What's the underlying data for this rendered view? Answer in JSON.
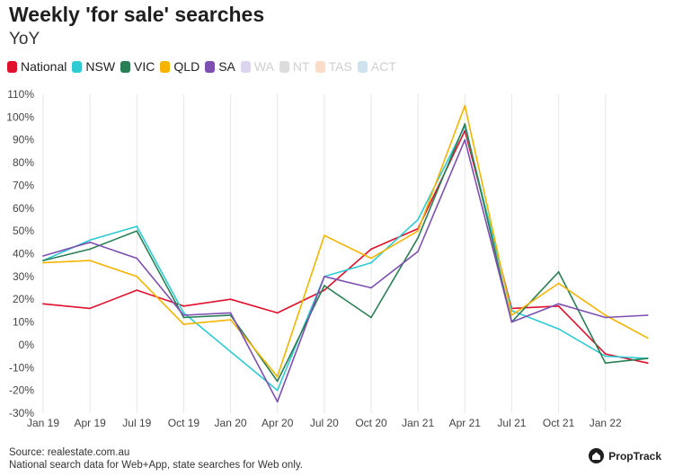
{
  "header": {
    "title": "Weekly 'for sale' searches",
    "subtitle": "YoY"
  },
  "legend": [
    {
      "name": "National",
      "color": "#e0102c",
      "visible": true
    },
    {
      "name": "NSW",
      "color": "#2ecbd3",
      "visible": true
    },
    {
      "name": "VIC",
      "color": "#2a7f54",
      "visible": true
    },
    {
      "name": "QLD",
      "color": "#f4b400",
      "visible": true
    },
    {
      "name": "SA",
      "color": "#7d4fb0",
      "visible": true
    },
    {
      "name": "WA",
      "color": "#dcd3ee",
      "visible": false
    },
    {
      "name": "NT",
      "color": "#dcdcdc",
      "visible": false
    },
    {
      "name": "TAS",
      "color": "#fbdcc8",
      "visible": false
    },
    {
      "name": "ACT",
      "color": "#cfe3ee",
      "visible": false
    }
  ],
  "footer": {
    "source": "Source: realestate.com.au",
    "note": "National search data for Web+App, state searches for Web only."
  },
  "brand": {
    "name": "PropTrack"
  },
  "chart_data": {
    "type": "line",
    "title": "Weekly 'for sale' searches",
    "subtitle": "YoY",
    "x_ticks": [
      "Jan 19",
      "Apr 19",
      "Jul 19",
      "Oct 19",
      "Jan 20",
      "Apr 20",
      "Jul 20",
      "Oct 20",
      "Jan 21",
      "Apr 21",
      "Jul 21",
      "Oct 21",
      "Jan 22"
    ],
    "y_ticks": [
      110,
      100,
      90,
      80,
      70,
      60,
      50,
      40,
      30,
      20,
      10,
      0,
      -10,
      -20,
      -30
    ],
    "y_unit": "%",
    "ylim": [
      -30,
      110
    ],
    "grid": "vertical",
    "legend_position": "top-left",
    "series": [
      {
        "name": "National",
        "color": "#e0102c",
        "x": [
          0,
          1,
          2,
          3,
          4,
          5,
          6,
          7,
          8,
          9,
          10,
          11,
          12,
          12.9
        ],
        "values": [
          18,
          16,
          24,
          17,
          20,
          14,
          24,
          42,
          51,
          94,
          16,
          17,
          -4,
          -8
        ]
      },
      {
        "name": "NSW",
        "color": "#2ecbd3",
        "x": [
          0,
          1,
          2,
          3,
          4,
          5,
          6,
          7,
          8,
          9,
          10,
          11,
          12,
          12.9
        ],
        "values": [
          37,
          46,
          52,
          14,
          -3,
          -20,
          30,
          36,
          55,
          96,
          15,
          7,
          -5,
          -6
        ]
      },
      {
        "name": "VIC",
        "color": "#2a7f54",
        "x": [
          0,
          1,
          2,
          3,
          4,
          5,
          6,
          7,
          8,
          9,
          10,
          11,
          12,
          12.9
        ],
        "values": [
          37,
          42,
          50,
          12,
          13,
          -16,
          26,
          12,
          47,
          97,
          10,
          32,
          -8,
          -6
        ]
      },
      {
        "name": "QLD",
        "color": "#f4b400",
        "x": [
          0,
          1,
          2,
          3,
          4,
          5,
          6,
          7,
          8,
          9,
          10,
          11,
          12,
          12.9
        ],
        "values": [
          36,
          37,
          30,
          9,
          11,
          -14,
          48,
          38,
          50,
          105,
          13,
          27,
          13,
          3
        ]
      },
      {
        "name": "SA",
        "color": "#7d4fb0",
        "x": [
          0,
          1,
          2,
          3,
          4,
          5,
          6,
          7,
          8,
          9,
          10,
          11,
          12,
          12.9
        ],
        "values": [
          39,
          45,
          38,
          13,
          14,
          -25,
          30,
          25,
          41,
          90,
          10,
          18,
          12,
          13
        ]
      }
    ]
  }
}
